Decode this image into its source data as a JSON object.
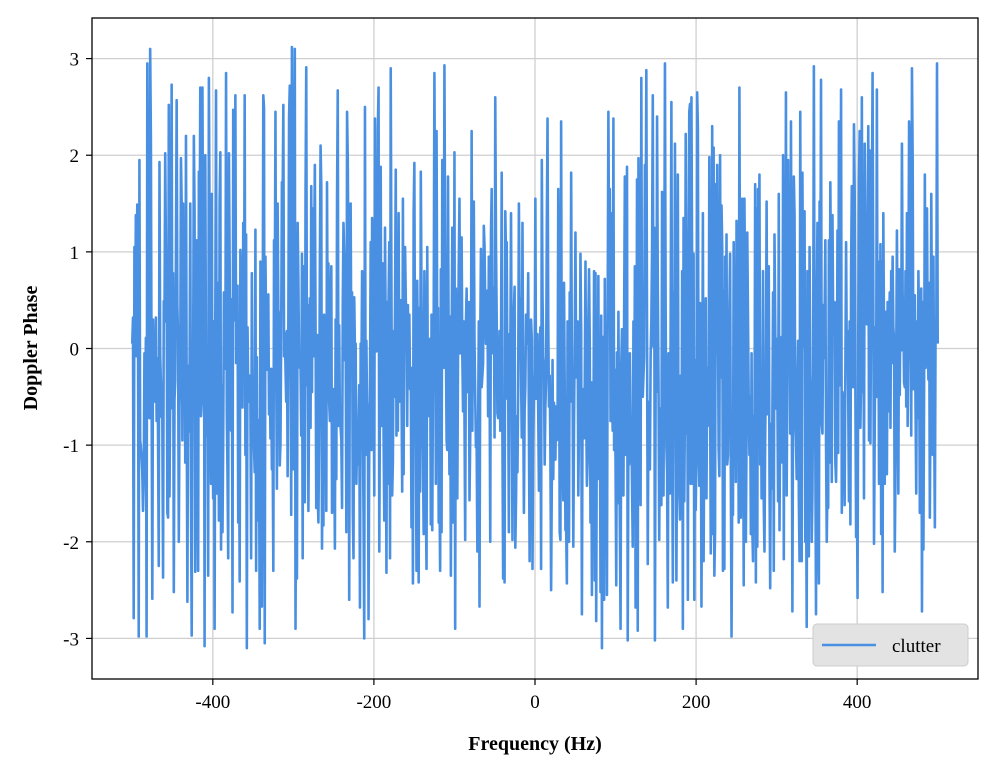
{
  "chart_data": {
    "type": "line",
    "title": "",
    "xlabel": "Frequency (Hz)",
    "ylabel": "Doppler Phase",
    "xlim": [
      -550,
      550
    ],
    "ylim": [
      -3.42,
      3.42
    ],
    "x_ticks": [
      -400,
      -200,
      0,
      200,
      400
    ],
    "y_ticks": [
      -3,
      -2,
      -1,
      0,
      1,
      2,
      3
    ],
    "x_tick_labels": [
      "-400",
      "-200",
      "0",
      "200",
      "400"
    ],
    "y_tick_labels": [
      "-3",
      "-2",
      "-1",
      "0",
      "1",
      "2",
      "3"
    ],
    "grid": true,
    "legend_position": "lower-right",
    "series": [
      {
        "name": "clutter",
        "color": "#4a90e2",
        "x_start": -500,
        "x_end": 500,
        "values": [
          0.05,
          0.32,
          -2.79,
          1.05,
          0.15,
          1.38,
          -0.08,
          1.49,
          0.22,
          -2.98,
          1.95,
          -0.95,
          -1.02,
          -1.12,
          -1.28,
          -1.68,
          -1.37,
          -0.05,
          -0.63,
          0.11,
          -2.98,
          2.95,
          0.35,
          0.68,
          -0.72,
          3.1,
          2.18,
          -0.45,
          -2.59,
          0.3,
          -0.25,
          0.05,
          -0.55,
          0.32,
          -0.75,
          -0.1,
          -0.9,
          -2.25,
          1.93,
          -0.06,
          -0.35,
          -0.71,
          -0.72,
          -2.37,
          0.49,
          0.28,
          2.02,
          1.02,
          0.63,
          -1.7,
          -1.75,
          2.52,
          -1.53,
          -0.45,
          0.88,
          2.73,
          -0.62,
          0.78,
          -2.52,
          -0.53,
          -0.33,
          1.02,
          2.57,
          0.45,
          0.08,
          -2.0,
          -0.58,
          -0.29,
          1.97,
          1.5,
          -0.95,
          1.5,
          -0.28,
          0.92,
          -1.18,
          2.2,
          -0.53,
          -2.62,
          -0.18,
          -0.86,
          -0.28,
          1.5,
          -1.5,
          -2.97,
          -0.52,
          -0.22,
          2.2,
          1.42,
          -2.31,
          -0.35,
          1.12,
          -0.55,
          -2.3,
          1.83,
          0.85,
          2.7,
          -0.7,
          -0.55,
          2.7,
          0.6,
          1.7,
          -3.08,
          2.0,
          -0.45,
          -0.9,
          -0.4,
          -2.35,
          2.8,
          1.2,
          -0.5,
          -1.4,
          1.6,
          -0.92,
          -1.55,
          0.28,
          -2.9,
          0.38,
          2.67,
          -1.5,
          0.68,
          -0.05,
          -1.78,
          1.52,
          2.03,
          -2.08,
          -0.38,
          -1.9,
          -0.96,
          0.58,
          -0.13,
          -0.21,
          2.85,
          -0.68,
          -1.27,
          -2.17,
          2.02,
          0.9,
          -0.57,
          -0.85,
          0.51,
          -2.73,
          2.47,
          1.25,
          0.29,
          2.62,
          -0.15,
          -0.07,
          0.65,
          -1.8,
          -0.54,
          -2.41,
          1.02,
          0.57,
          0.03,
          -0.61,
          1.3,
          -0.25,
          2.62,
          -1.1,
          1.18,
          -3.1,
          0.22,
          -0.47,
          -0.55,
          -0.28,
          -0.53,
          -2.17,
          0.78,
          -0.65,
          -0.98,
          -1.02,
          -1.28,
          1.23,
          -2.3,
          -0.09,
          -1.78,
          -0.74,
          -0.82,
          -2.9,
          0.9,
          0.68,
          -2.67,
          -0.4,
          2.62,
          2.49,
          -3.05,
          0.95,
          0.2,
          -0.22,
          -0.21,
          0.56,
          -0.68,
          -0.22,
          -0.93,
          -0.21,
          -1.25,
          -0.89,
          -2.3,
          1.12,
          0.38,
          2.45,
          -0.2,
          -1.45,
          1.5,
          0.4,
          0.35,
          -1.21,
          -0.98,
          0.16,
          1.72,
          1.53,
          2.52,
          -0.08,
          0.16,
          -0.19,
          -0.55,
          0.18,
          -1.32,
          0.28,
          2.4,
          2.72,
          0.32,
          -1.72,
          3.12,
          -0.28,
          -1.25,
          1.4,
          3.1,
          -2.9,
          -0.85,
          -2.38,
          1.3,
          0.72,
          -0.18,
          -0.2,
          -0.15,
          -0.9,
          0.98,
          -2.17,
          0.85,
          0.38,
          -1.59,
          1.58,
          2.91,
          -0.38,
          0.45,
          -1.68,
          -0.45,
          0.52,
          -0.82,
          1.68,
          -0.45,
          1.45,
          -0.08,
          0.92,
          1.9,
          0.22,
          -1.65,
          0.14,
          -1.51,
          -1.8,
          -0.83,
          0.83,
          2.1,
          1.68,
          -2.07,
          -0.88,
          -1.83,
          0.35,
          0.32,
          0.3,
          -1.68,
          1.72,
          -0.05,
          0.88,
          -0.55,
          -0.75,
          0.31,
          0.85,
          -1.7,
          -0.75,
          -0.42,
          -0.9,
          -2.07,
          0.3,
          -1.35,
          1.55,
          2.67,
          -0.8,
          0.24,
          -0.73,
          -0.82,
          -0.95,
          -1.65,
          0.45,
          1.3,
          0.98,
          -0.12,
          0.28,
          -1.9,
          2.45,
          1.95,
          0.78,
          -2.6,
          0.6,
          1.5,
          -0.15,
          0.58,
          -1.7,
          -2.17,
          0.53,
          -0.05,
          0.05,
          -1.4,
          -0.93,
          -1.2,
          -0.8,
          -0.38,
          -2.68,
          0.05,
          -0.35,
          0.8,
          -0.8,
          -1.72,
          -3.0,
          2.5,
          -1.1,
          0.08,
          -0.68,
          -0.58,
          -2.8,
          -0.95,
          -0.4,
          1.1,
          -1.05,
          1.35,
          0.8,
          -0.12,
          -1.52,
          2.38,
          0.25,
          -0.03,
          0.18,
          2.28,
          2.7,
          -2.1,
          -0.4,
          1.88,
          -0.8,
          0.35,
          0.88,
          -0.88,
          -1.78,
          1.25,
          0.12,
          -2.32,
          0.48,
          -1.4,
          0.53,
          1.1,
          -2.17,
          2.9,
          0.65,
          -1.52,
          -1.18,
          0.18,
          -0.5,
          0.48,
          1.85,
          -0.9,
          -0.58,
          -0.85,
          1.4,
          -0.55,
          -0.5,
          0.5,
          -0.38,
          -1.48,
          1.55,
          -1.3,
          0.98,
          1.05,
          0.52,
          0.18,
          -0.8,
          0.45,
          -0.33,
          0.35,
          -0.42,
          -0.28,
          -1.85,
          -0.2,
          -2.43,
          1.4,
          1.92,
          -0.55,
          -0.88,
          -2.3,
          0.7,
          -0.13,
          -2.42,
          0.42,
          -1.48,
          1.83,
          0.54,
          -0.45,
          -1.12,
          -1.92,
          0.8,
          0.12,
          -1.58,
          -2.28,
          1.05,
          -0.7,
          -0.35,
          -0.42,
          0.1,
          -1.82,
          0.35,
          -1.88,
          -0.35,
          0.25,
          2.85,
          1.12,
          -1.4,
          2.25,
          -0.02,
          0.42,
          -1.8,
          -1.4,
          -2.3,
          0.82,
          -1.9,
          1.95,
          -0.12,
          -0.2,
          2.93,
          1.05,
          0.12,
          -0.95,
          -1.05,
          1.78,
          -0.2,
          -1.3,
          0.33,
          -2.35,
          -0.05,
          1.25,
          -1.8,
          -1.65,
          2.03,
          -2.9,
          0.62,
          -0.42,
          -1.55,
          -0.05,
          0.85,
          1.55,
          -0.05,
          0.45,
          1.15,
          -0.08,
          -0.65,
          0.28,
          -0.7,
          -1.98,
          0.26,
          0.62,
          -0.45,
          0.2,
          0.48,
          -1.57,
          -0.93,
          -0.35,
          2.25,
          -0.85,
          0.82,
          1.52,
          0.08,
          -0.5,
          -1.02,
          -0.98,
          -2.1,
          -0.9,
          0.28,
          -2.67,
          0.07,
          1.03,
          -0.4,
          -0.28,
          -0.15,
          1.27,
          1.06,
          0.42,
          0.05,
          0.35,
          0.6,
          -0.7,
          0.95,
          -0.15,
          -2.0,
          1.18,
          1.65,
          0.0,
          -0.05,
          0.63,
          -0.92,
          2.6,
          1.08,
          0.32,
          -0.67,
          -0.72,
          -0.28,
          0.18,
          -0.85,
          -0.08,
          1.82,
          -0.9,
          -2.38,
          -0.65,
          -2.42,
          1.42,
          0.95,
          1.1,
          -0.52,
          -0.24,
          -1.9,
          0.15,
          -0.12,
          1.4,
          -0.4,
          -1.98,
          0.18,
          0.38,
          0.64,
          -2.06,
          -1.57,
          -0.7,
          -1.28,
          -0.45,
          1.5,
          0.38,
          0.52,
          -0.25,
          -0.92,
          1.3,
          -0.45,
          -1.7,
          -0.65,
          -0.4,
          0.35,
          0.2,
          0.05,
          0.78,
          -0.85,
          -2.2,
          -0.38,
          0.3,
          0.1,
          -2.28,
          -0.95,
          -0.48,
          -0.25,
          1.55,
          -0.52,
          0.0,
          0.15,
          -0.65,
          -1.47,
          -0.35,
          0.22,
          -2.28,
          1.95,
          0.54,
          -0.08,
          -0.18,
          -1.2,
          -0.6,
          -0.33,
          1.28,
          2.38,
          0.3,
          -0.6,
          -0.28,
          -1.05,
          -2.5,
          -1.35,
          -0.12,
          -1.35,
          -0.56,
          -0.78,
          -1.15,
          -0.6,
          -0.95,
          -0.85,
          1.65,
          0.6,
          -1.9,
          -1.98,
          2.35,
          -0.87,
          -1.03,
          -1.57,
          0.68,
          -0.4,
          -1.88,
          -1.83,
          -2.43,
          0.28,
          -0.25,
          -2.0,
          0.58,
          -0.55,
          1.82,
          -0.2,
          -0.35,
          -2.05,
          -0.8,
          0.12,
          1.2,
          -0.3,
          -0.12,
          0.28,
          -1.52,
          -0.75,
          -0.6,
          0.98,
          0.18,
          -2.75,
          -0.42,
          -0.48,
          -0.93,
          -0.35,
          0.9,
          -0.62,
          -1.42,
          -1.17,
          0.28,
          0.82,
          0.05,
          -1.8,
          -0.35,
          -2.55,
          -0.63,
          -1.1,
          0.8,
          -2.4,
          0.78,
          -2.82,
          -0.35,
          -0.78,
          0.75,
          -1.35,
          -0.15,
          -2.52,
          0.34,
          -3.1,
          0.12,
          -1.0,
          -2.6,
          0.72,
          -0.88,
          -0.35,
          -2.55,
          0.38,
          2.45,
          0.9,
          1.65,
          -0.75,
          1.4,
          -0.4,
          -0.85,
          2.38,
          -1.05,
          -0.22,
          -1.2,
          -2.45,
          -0.04,
          -1.6,
          0.38,
          -0.95,
          -1.8,
          -2.9,
          -0.17,
          0.2,
          -0.95,
          -1.52,
          0.35,
          1.78,
          -1.1,
          -0.35,
          1.88,
          -3.02,
          -0.9,
          -1.2,
          -0.05,
          -0.75,
          -0.72,
          -1.4,
          -2.05,
          0.28,
          -0.98,
          0.85,
          -2.68,
          -1.65,
          1.75,
          -2.92,
          1.97,
          0.9,
          -0.38,
          -1.62,
          2.8,
          -0.28,
          -0.5,
          -0.28,
          -0.08,
          1.9,
          1.03,
          2.88,
          0.18,
          -2.23,
          -0.55,
          -0.72,
          -1.25,
          -0.08,
          0.28,
          1.02,
          2.62,
          0.02,
          1.25,
          -3.02,
          -0.35,
          -0.45,
          2.4,
          0.65,
          -0.3,
          -1.98,
          -0.62,
          -1.05,
          -1.62,
          1.62,
          0.52,
          -1.52,
          0.45,
          2.95,
          0.37,
          -1.02,
          -1.28,
          -2.68,
          -0.05,
          -0.75,
          -1.5,
          0.32,
          2.55,
          -0.75,
          -2.42,
          0.58,
          -0.4,
          2.12,
          -0.72,
          -2.4,
          -0.65,
          1.8,
          -1.28,
          -1.48,
          -1.77,
          -0.28,
          -1.72,
          0.8,
          -2.9,
          1.35,
          -1.58,
          -0.48,
          2.22,
          -0.88,
          0.88,
          -2.6,
          1.22,
          2.45,
          2.53,
          -1.4,
          2.6,
          0.75,
          -1.4,
          0.98,
          -2.6,
          -0.12,
          -1.67,
          -1.1,
          2.65,
          2.28,
          -1.0,
          -1.42,
          0.47,
          -0.12,
          -2.67,
          -0.85,
          1.4,
          -2.2,
          -0.72,
          -0.05,
          0.52,
          -1.55,
          -0.2,
          -0.8,
          -0.65,
          1.98,
          -0.25,
          -2.12,
          -1.1,
          2.3,
          -1.92,
          2.08,
          -2.35,
          -1.9,
          1.7,
          -0.05,
          1.9,
          0.28,
          -1.05,
          -1.32,
          2.0,
          -0.3,
          1.48,
          1.05,
          -2.3,
          0.6,
          -2.28,
          0.95,
          -0.32,
          1.18,
          -1.2,
          -1.1,
          -0.08,
          0.42,
          0.98,
          -1.25,
          -2.98,
          -1.42,
          -1.72,
          1.1,
          -0.35,
          -0.48,
          -1.38,
          1.32,
          0.1,
          0.7,
          -1.8,
          2.7,
          0.05,
          -1.75,
          -0.45,
          1.55,
          0.2,
          -2.45,
          1.55,
          0.58,
          -2.0,
          -0.88,
          1.2,
          0.32,
          -0.55,
          -1.1,
          -0.5,
          -1.92,
          -0.05,
          -1.85,
          -2.2,
          -0.7,
          -1.22,
          1.7,
          -2.42,
          1.45,
          -2.05,
          1.65,
          0.55,
          1.8,
          -1.2,
          -0.25,
          -1.55,
          -0.65,
          0.8,
          -1.6,
          -2.1,
          -0.92,
          -0.22,
          1.52,
          -0.68,
          0.2,
          0.85,
          -1.28,
          -2.48,
          -0.78,
          -1.45,
          -0.75,
          0.58,
          -2.3,
          1.18,
          0.28,
          -0.62,
          0.1,
          -0.42,
          -1.58,
          1.6,
          -1.88,
          -0.6,
          -0.95,
          0.12,
          -1.18,
          2.0,
          -2.18,
          0.72,
          -0.38,
          2.65,
          -1.52,
          -0.2,
          1.95,
          0.08,
          0.7,
          -0.88,
          2.35,
          0.1,
          -2.72,
          -0.42,
          1.78,
          1.38,
          -0.75,
          -0.95,
          -1.35,
          -0.4,
          0.08,
          -1.55,
          -2.2,
          2.45,
          -0.45,
          -2.2,
          1.82,
          0.2,
          0.02,
          1.42,
          -2.0,
          -1.2,
          -2.88,
          0.8,
          -1.65,
          -2.15,
          1.05,
          -0.28,
          -0.55,
          -2.0,
          -1.5,
          -0.15,
          2.92,
          -0.1,
          -1.0,
          -2.75,
          0.38,
          1.3,
          -1.85,
          -2.43,
          1.52,
          0.42,
          2.78,
          -0.78,
          -0.88,
          0.45,
          -0.1,
          0.35,
          1.12,
          -0.98,
          -2.0,
          -1.42,
          -1.65,
          1.12,
          -1.18,
          1.72,
          0.6,
          -1.38,
          1.38,
          0.18,
          0.42,
          0.48,
          -1.18,
          -1.38,
          -0.75,
          1.22,
          -1.08,
          2.35,
          -0.38,
          0.38,
          2.68,
          -1.7,
          -0.45,
          -0.55,
          -0.9,
          -1.62,
          -0.2,
          1.1,
          -0.1,
          0.18,
          -0.5,
          -1.58,
          0.28,
          -1.82,
          0.82,
          1.68,
          0.58,
          -0.4,
          2.32,
          1.62,
          -0.48,
          -1.95,
          -1.22,
          -2.58,
          0.1,
          1.75,
          2.25,
          -0.82,
          -0.28,
          2.6,
          -0.45,
          1.25,
          -1.55,
          2.12,
          0.92,
          0.35,
          0.25,
          1.1,
          2.3,
          -0.95,
          2.05,
          -0.98,
          0.7,
          1.45,
          2.85,
          0.6,
          -2.02,
          -0.83,
          0.22,
          -0.5,
          2.68,
          -0.5,
          0.9,
          -1.4,
          -0.48,
          1.08,
          -1.92,
          0.9,
          -2.52,
          1.4,
          0.15,
          -1.4,
          0.38,
          -0.45,
          -1.3,
          0.48,
          -0.65,
          0.08,
          0.58,
          -0.82,
          0.8,
          -0.15,
          0.95,
          0.22,
          0.1,
          -2.1,
          -1.28,
          -0.22,
          1.22,
          0.02,
          -1.5,
          0.82,
          -0.48,
          0.7,
          -0.02,
          2.12,
          0.55,
          0.3,
          -0.35,
          -0.4,
          0.8,
          -0.6,
          1.4,
          -0.8,
          0.5,
          2.35,
          2.05,
          0.1,
          -0.9,
          2.9,
          1.95,
          -0.42,
          0.15,
          0.55,
          -0.6,
          -1.5,
          0.28,
          -0.72,
          0.8,
          0.15,
          -1.7,
          0.05,
          0.62,
          -2.72,
          0.48,
          -2.08,
          -0.35,
          1.8,
          -0.2,
          0.55,
          1.45,
          0.15,
          -0.32,
          0.68,
          -1.75,
          -0.3,
          1.6,
          0.05,
          -1.1,
          0.95,
          -0.7,
          -1.85,
          0.3,
          0.1,
          2.95,
          0.05
        ]
      }
    ]
  }
}
